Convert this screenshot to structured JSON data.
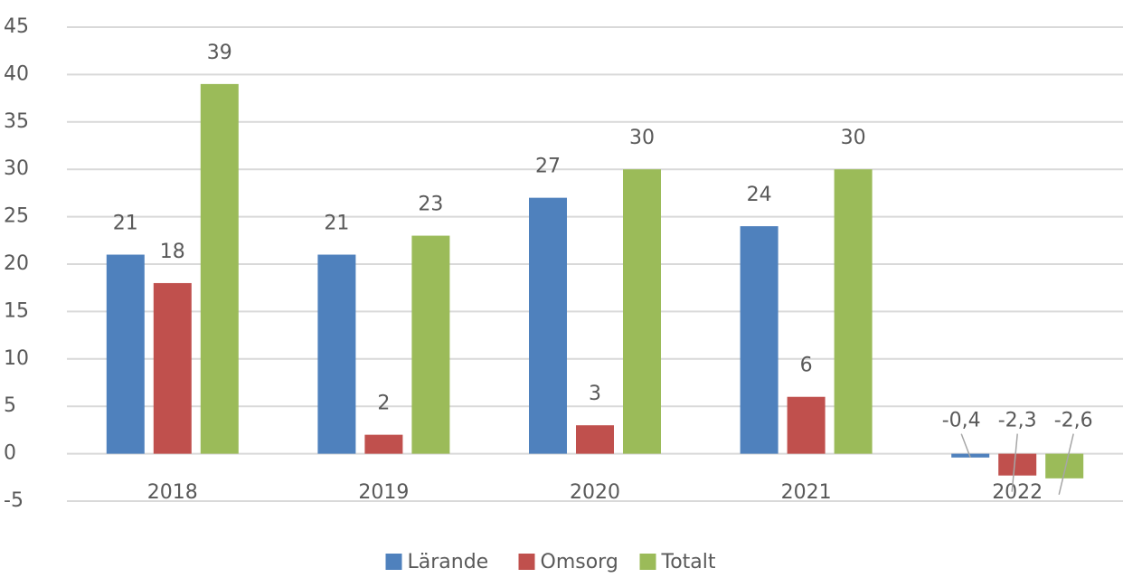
{
  "chart_data": {
    "type": "bar",
    "categories": [
      "2018",
      "2019",
      "2020",
      "2021",
      "2022"
    ],
    "series": [
      {
        "name": "Lärande",
        "color": "#4f81bd",
        "values": [
          21,
          21,
          27,
          24,
          -0.4
        ],
        "value_labels": [
          "21",
          "21",
          "27",
          "24",
          "-0,4"
        ]
      },
      {
        "name": "Omsorg",
        "color": "#c0504d",
        "values": [
          18,
          2,
          3,
          6,
          -2.3
        ],
        "value_labels": [
          "18",
          "2",
          "3",
          "6",
          "-2,3"
        ]
      },
      {
        "name": "Totalt",
        "color": "#9bbb59",
        "values": [
          39,
          23,
          30,
          30,
          -2.6
        ],
        "value_labels": [
          "39",
          "23",
          "30",
          "30",
          "-2,6"
        ]
      }
    ],
    "ylim": [
      -5,
      45
    ],
    "yticks": [
      -5,
      0,
      5,
      10,
      15,
      20,
      25,
      30,
      35,
      40,
      45
    ],
    "grid": true,
    "legend": "bottom"
  }
}
